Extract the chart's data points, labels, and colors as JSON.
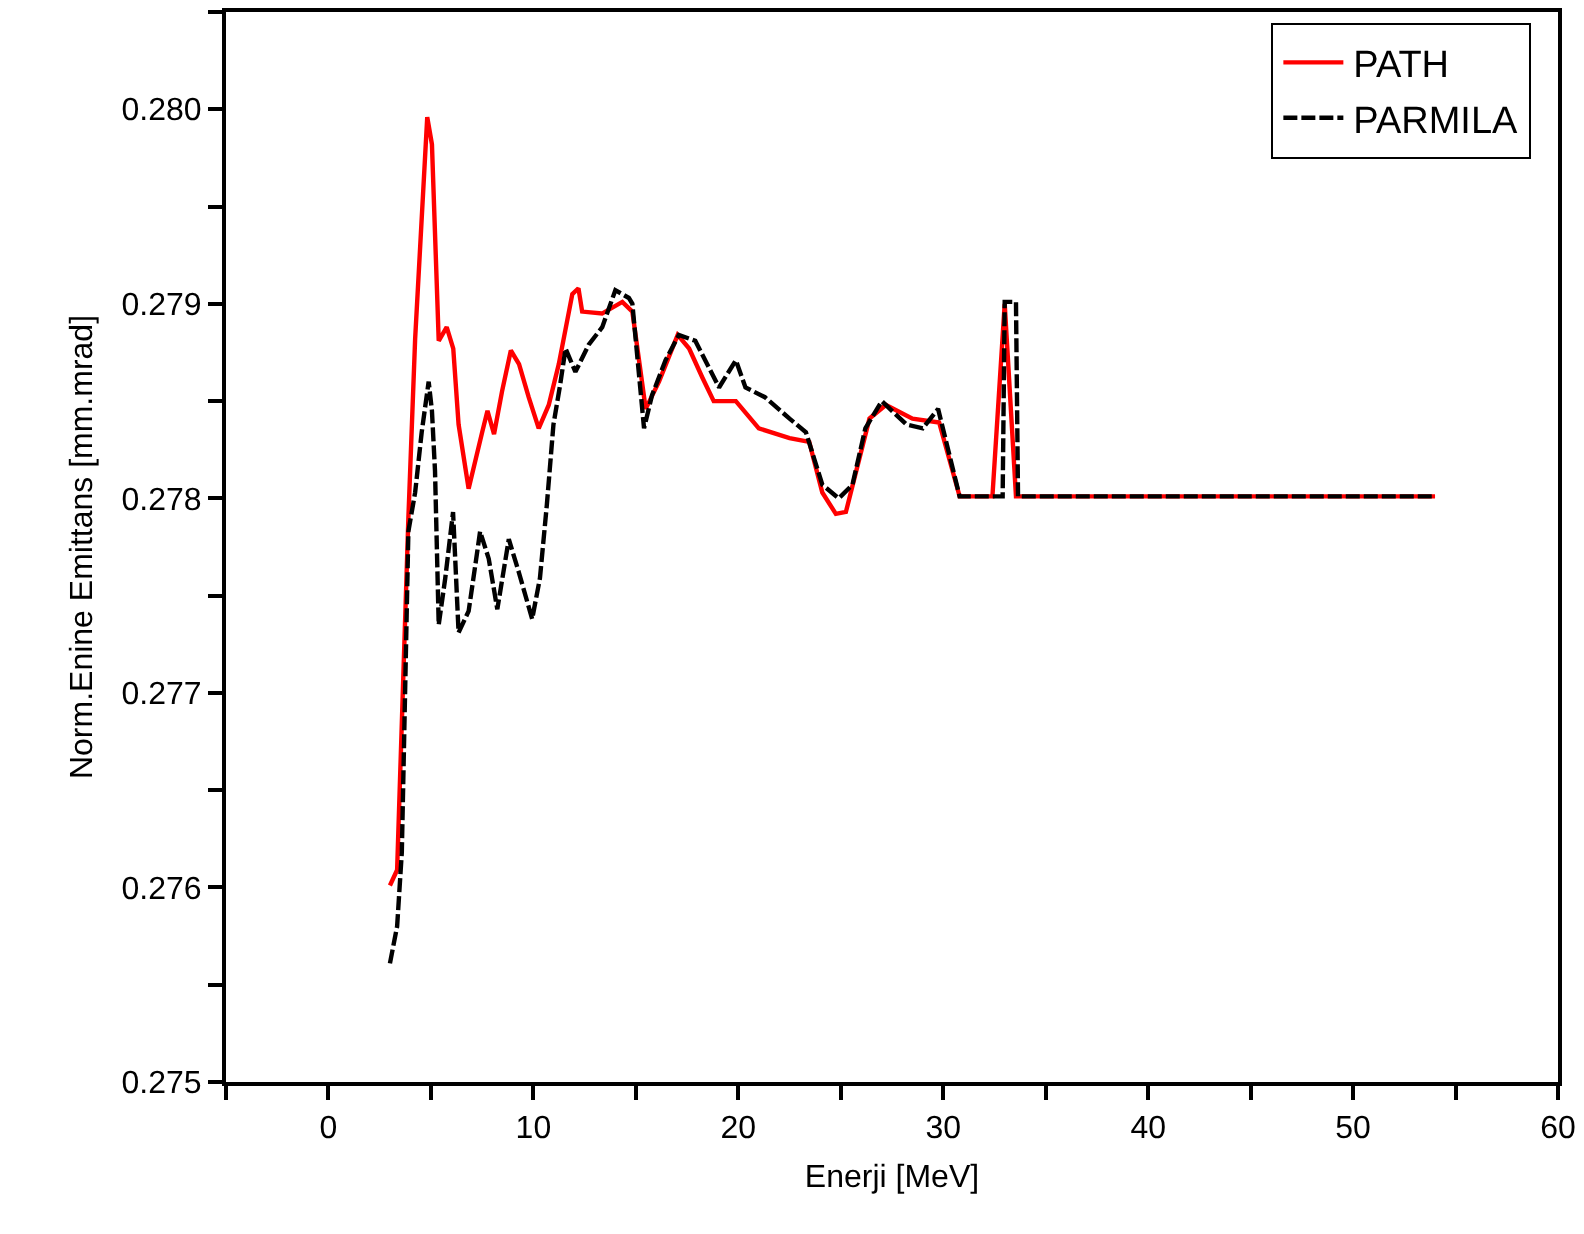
{
  "chart_data": {
    "type": "line",
    "xlabel": "Enerji [MeV]",
    "ylabel": "Norm.Enine Emittans [mm.mrad]",
    "xlim": [
      -5,
      60
    ],
    "xticks": [
      {
        "value": -5,
        "label": null
      },
      0,
      {
        "value": 5,
        "label": null
      },
      10,
      {
        "value": 15,
        "label": null
      },
      20,
      {
        "value": 25,
        "label": null
      },
      30,
      {
        "value": 35,
        "label": null
      },
      40,
      {
        "value": 45,
        "label": null
      },
      50,
      {
        "value": 55,
        "label": null
      },
      60
    ],
    "ylim": [
      0.275,
      0.2805
    ],
    "yticks": [
      {
        "value": 0.275,
        "label": "0.275"
      },
      {
        "value": 0.2755,
        "label": null
      },
      {
        "value": 0.276,
        "label": "0.276"
      },
      {
        "value": 0.2765,
        "label": null
      },
      {
        "value": 0.277,
        "label": "0.277"
      },
      {
        "value": 0.2775,
        "label": null
      },
      {
        "value": 0.278,
        "label": "0.278"
      },
      {
        "value": 0.2785,
        "label": null
      },
      {
        "value": 0.279,
        "label": "0.279"
      },
      {
        "value": 0.2795,
        "label": null
      },
      {
        "value": 0.28,
        "label": "0.280"
      },
      {
        "value": 0.2805,
        "label": null
      }
    ],
    "grid": false,
    "legend": "top right",
    "marker": "none",
    "series": [
      {
        "name": "PATH",
        "color": "#ff0000",
        "line_style": "solid",
        "x": [
          3.0,
          3.35,
          3.9,
          4.23,
          4.82,
          5.05,
          5.38,
          5.77,
          6.09,
          6.35,
          6.84,
          7.5,
          7.76,
          8.08,
          8.47,
          8.9,
          9.3,
          9.77,
          10.26,
          10.75,
          11.24,
          11.9,
          12.2,
          12.38,
          13.35,
          14.34,
          14.83,
          15.48,
          16.13,
          17.04,
          17.6,
          18.25,
          18.8,
          19.88,
          21.0,
          22.5,
          23.46,
          24.1,
          24.76,
          25.25,
          26.4,
          27.2,
          28.5,
          29.8,
          30.8,
          32.4,
          33.0,
          33.55,
          54.0
        ],
        "values": [
          0.27601,
          0.27609,
          0.2779,
          0.27882,
          0.27996,
          0.27982,
          0.27881,
          0.27888,
          0.27877,
          0.27838,
          0.27805,
          0.27834,
          0.27845,
          0.27833,
          0.27855,
          0.27876,
          0.27869,
          0.27852,
          0.27836,
          0.27848,
          0.27869,
          0.27905,
          0.27908,
          0.27896,
          0.27895,
          0.27901,
          0.27896,
          0.27846,
          0.2786,
          0.27884,
          0.27877,
          0.27862,
          0.2785,
          0.2785,
          0.27836,
          0.27831,
          0.27829,
          0.27803,
          0.27792,
          0.27793,
          0.27841,
          0.27848,
          0.27841,
          0.27839,
          0.27801,
          0.27801,
          0.279,
          0.27801,
          0.27801
        ]
      },
      {
        "name": "PARMILA",
        "color": "#000000",
        "line_style": "dashed",
        "x": [
          3.0,
          3.35,
          3.58,
          3.9,
          4.23,
          4.55,
          4.89,
          5.05,
          5.2,
          5.38,
          5.7,
          6.08,
          6.35,
          6.84,
          7.17,
          7.4,
          7.82,
          8.24,
          8.8,
          9.29,
          9.94,
          10.32,
          10.66,
          10.98,
          11.3,
          11.57,
          12.05,
          12.7,
          13.36,
          14.0,
          14.66,
          14.83,
          15.4,
          15.79,
          16.45,
          17.1,
          17.9,
          19.06,
          19.88,
          20.35,
          21.3,
          22.5,
          23.3,
          24.1,
          24.9,
          25.57,
          26.2,
          27.0,
          28.2,
          29.0,
          29.75,
          30.8,
          32.9,
          33.0,
          33.55,
          33.65,
          54.0
        ],
        "values": [
          0.27561,
          0.2758,
          0.27618,
          0.27783,
          0.27803,
          0.27834,
          0.2786,
          0.27845,
          0.27814,
          0.27735,
          0.27759,
          0.27793,
          0.27731,
          0.27742,
          0.27766,
          0.27783,
          0.27769,
          0.27743,
          0.27779,
          0.27762,
          0.27738,
          0.27759,
          0.27797,
          0.27838,
          0.27858,
          0.27877,
          0.27865,
          0.27879,
          0.27888,
          0.27907,
          0.27903,
          0.279,
          0.27836,
          0.27853,
          0.27871,
          0.27884,
          0.27881,
          0.27857,
          0.27871,
          0.27857,
          0.27852,
          0.27841,
          0.27834,
          0.27807,
          0.278,
          0.27807,
          0.27836,
          0.2785,
          0.27838,
          0.27836,
          0.27846,
          0.27801,
          0.27801,
          0.27901,
          0.27901,
          0.27801,
          0.27801
        ]
      }
    ]
  }
}
